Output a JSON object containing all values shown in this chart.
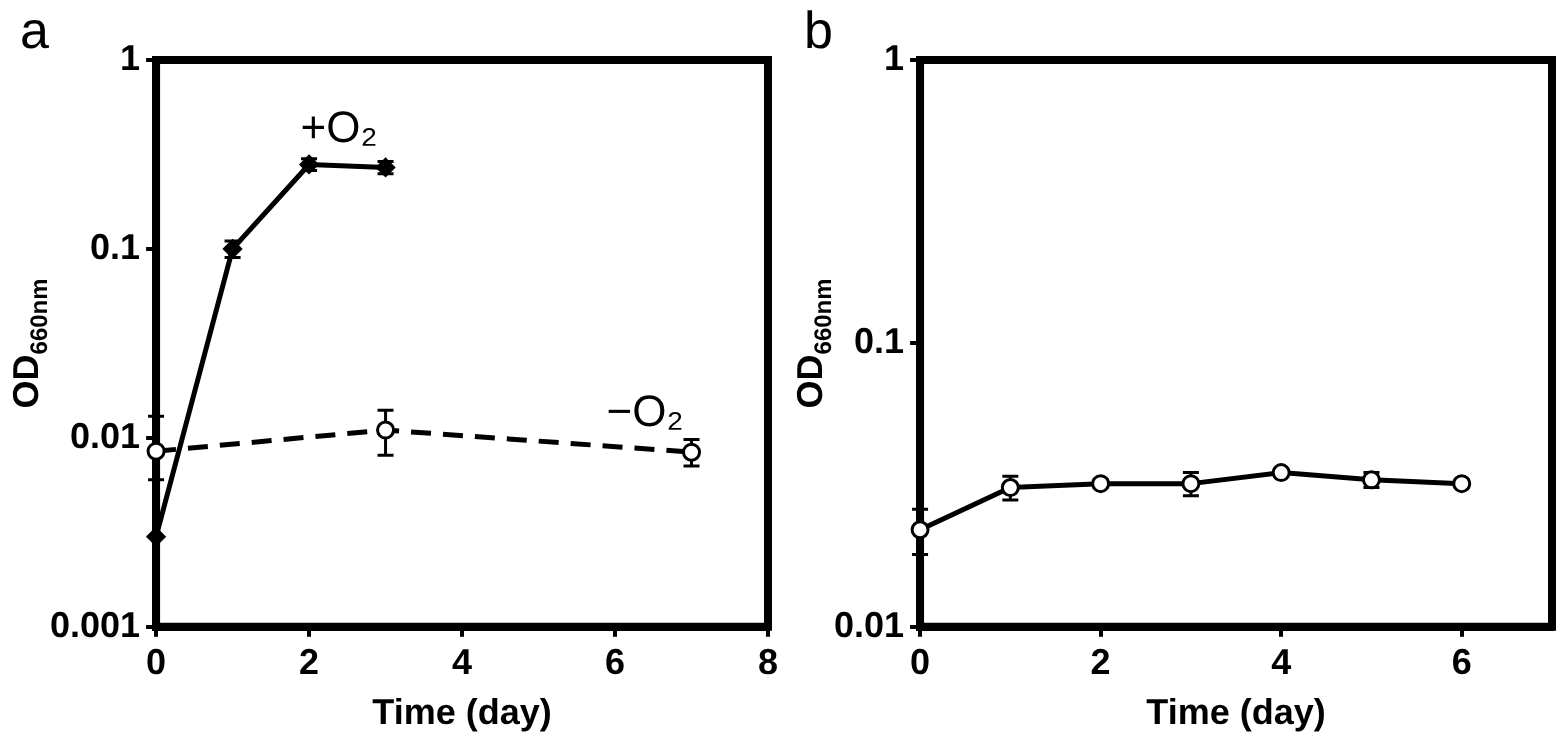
{
  "chart_data": [
    {
      "type": "line",
      "title": "a",
      "xlabel": "Time (day)",
      "ylabel": "OD$_{660nm}$",
      "log": "y",
      "xlim": [
        0,
        8
      ],
      "xticks": [
        0,
        2,
        4,
        6,
        8
      ],
      "ylim": [
        0.001,
        1
      ],
      "yticks": [
        0.001,
        0.01,
        0.1,
        1
      ],
      "grid": false,
      "legend": false,
      "series": [
        {
          "name": "+O₂",
          "color": "#000000",
          "marker": "diamond",
          "line_style": "solid",
          "x": [
            0,
            1,
            2,
            3
          ],
          "values": [
            0.003,
            0.1,
            0.28,
            0.27
          ],
          "errors": [
            null,
            0.01,
            0.02,
            0.02
          ]
        },
        {
          "name": "−O₂",
          "color": "#000000",
          "marker": "circle",
          "line_style": "dashed",
          "x": [
            0,
            3,
            7
          ],
          "values": [
            0.0085,
            0.011,
            0.0084
          ],
          "errors": [
            [
              0.006,
              0.013
            ],
            [
              0.0081,
              0.014
            ],
            [
              0.0071,
              0.0098
            ]
          ]
        }
      ]
    },
    {
      "type": "line",
      "title": "b",
      "xlabel": "Time (day)",
      "ylabel": "OD$_{660nm}$",
      "log": "y",
      "xlim": [
        0,
        7
      ],
      "xticks": [
        0,
        2,
        4,
        6
      ],
      "ylim": [
        0.01,
        1
      ],
      "yticks": [
        0.01,
        0.1,
        1
      ],
      "grid": false,
      "legend": false,
      "series": [
        {
          "color": "#000000",
          "marker": "circle",
          "line_style": "solid",
          "x": [
            0,
            1,
            2,
            3,
            4,
            5,
            6
          ],
          "values": [
            0.022,
            0.031,
            0.032,
            0.032,
            0.035,
            0.033,
            0.032
          ],
          "errors": [
            [
              0.018,
              0.026
            ],
            0.003,
            0.001,
            0.003,
            0.001,
            0.002,
            0.001
          ]
        }
      ]
    }
  ]
}
